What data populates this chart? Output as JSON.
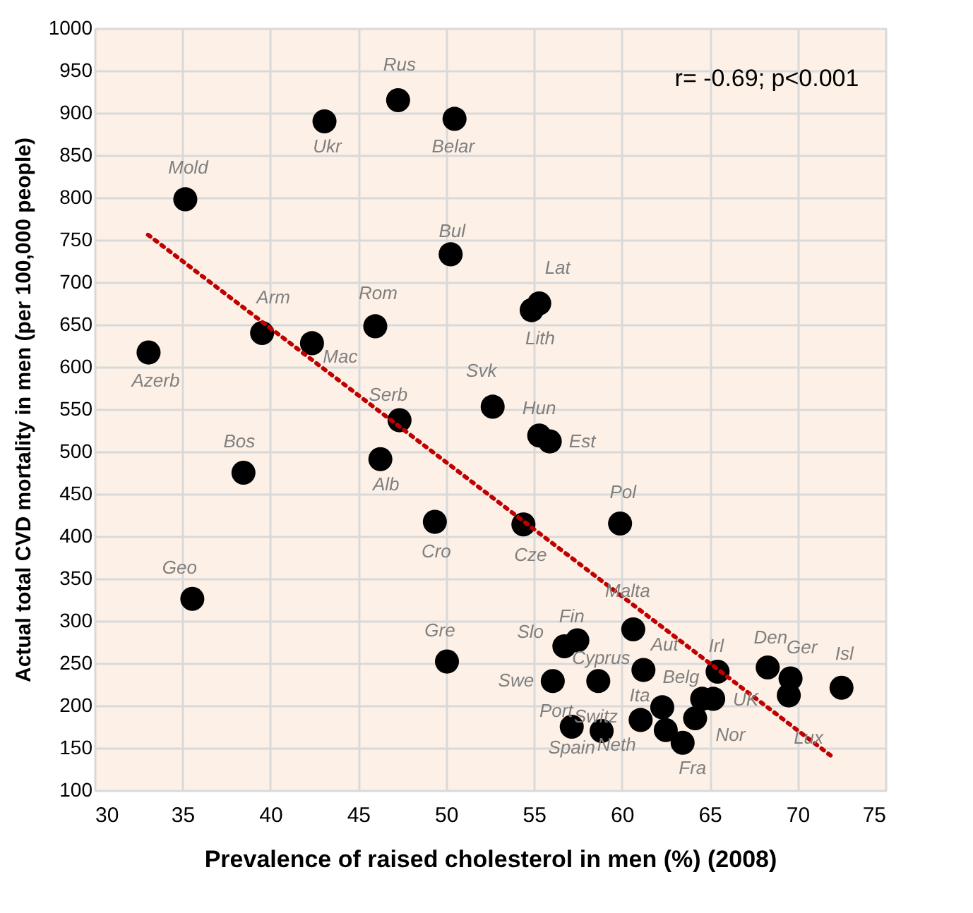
{
  "chart_data": {
    "type": "scatter",
    "xlabel": "Prevalence of raised cholesterol in men (%) (2008)",
    "ylabel": "Actual total CVD mortality in men (per 100,000 people)",
    "xlim": [
      30,
      75
    ],
    "xticks": [
      30,
      35,
      40,
      45,
      50,
      55,
      60,
      65,
      70,
      75
    ],
    "ylim": [
      100,
      1000
    ],
    "yticks": [
      100,
      150,
      200,
      250,
      300,
      350,
      400,
      450,
      500,
      550,
      600,
      650,
      700,
      750,
      800,
      850,
      900,
      950,
      1000
    ],
    "grid": true,
    "series": [
      {
        "color": "#000000",
        "marker": "circle",
        "x": [
          47.27,
          43.08,
          50.48,
          35.16,
          50.26,
          39.53,
          42.37,
          45.97,
          33.07,
          52.65,
          47.35,
          55.3,
          54.87,
          55.3,
          55.9,
          54.4,
          59.9,
          38.47,
          46.26,
          49.36,
          35.56,
          50.05,
          60.65,
          57.47,
          56.73,
          61.23,
          65.45,
          68.3,
          69.6,
          72.5,
          56.07,
          58.66,
          69.5,
          64.57,
          65.2,
          64.17,
          63.46,
          61.07,
          62.3,
          57.15,
          58.85,
          62.5
        ],
        "values": [
          915,
          890,
          893,
          798,
          733,
          640,
          628,
          648,
          617,
          553,
          537,
          675,
          667,
          519,
          512,
          414,
          415,
          475,
          491,
          417,
          326,
          252,
          290,
          277,
          270,
          242,
          240,
          245,
          232,
          221,
          229,
          229,
          212,
          208,
          208,
          185,
          156,
          183,
          198,
          175,
          170,
          171
        ]
      },
      {
        "type": "line",
        "color": "#c00000",
        "line_style": "dotted",
        "x": [
          33.04,
          72.07
        ],
        "values": [
          756,
          138
        ]
      }
    ],
    "annotations": [
      {
        "text": "Rus",
        "x": 47.27,
        "y": 915
      },
      {
        "text": "Ukr",
        "x": 43.08,
        "y": 890
      },
      {
        "text": "Belar",
        "x": 50.48,
        "y": 893
      },
      {
        "text": "Mold",
        "x": 35.16,
        "y": 798
      },
      {
        "text": "Bul",
        "x": 50.26,
        "y": 733
      },
      {
        "text": "Arm",
        "x": 39.53,
        "y": 640
      },
      {
        "text": "Mac",
        "x": 42.37,
        "y": 628
      },
      {
        "text": "Rom",
        "x": 45.97,
        "y": 648
      },
      {
        "text": "Azerb",
        "x": 33.07,
        "y": 617
      },
      {
        "text": "Svk",
        "x": 52.65,
        "y": 553
      },
      {
        "text": "Serb",
        "x": 47.35,
        "y": 537
      },
      {
        "text": "Lat",
        "x": 55.3,
        "y": 675
      },
      {
        "text": "Lith",
        "x": 54.87,
        "y": 667
      },
      {
        "text": "Hun",
        "x": 55.3,
        "y": 519
      },
      {
        "text": "Est",
        "x": 55.9,
        "y": 512
      },
      {
        "text": "Cze",
        "x": 54.4,
        "y": 414
      },
      {
        "text": "Pol",
        "x": 59.9,
        "y": 415
      },
      {
        "text": "Bos",
        "x": 38.47,
        "y": 475
      },
      {
        "text": "Alb",
        "x": 46.26,
        "y": 491
      },
      {
        "text": "Cro",
        "x": 49.36,
        "y": 417
      },
      {
        "text": "Geo",
        "x": 35.56,
        "y": 326
      },
      {
        "text": "Gre",
        "x": 50.05,
        "y": 252
      },
      {
        "text": "Malta",
        "x": 60.65,
        "y": 290
      },
      {
        "text": "Fin",
        "x": 57.47,
        "y": 277
      },
      {
        "text": "Slo",
        "x": 56.73,
        "y": 270
      },
      {
        "text": "Aut",
        "x": 61.23,
        "y": 242
      },
      {
        "text": "Irl",
        "x": 65.45,
        "y": 240
      },
      {
        "text": "Den",
        "x": 68.3,
        "y": 245
      },
      {
        "text": "Ger",
        "x": 69.6,
        "y": 232
      },
      {
        "text": "Isl",
        "x": 72.5,
        "y": 221
      },
      {
        "text": "Swe",
        "x": 56.07,
        "y": 229
      },
      {
        "text": "Cyprus",
        "x": 58.66,
        "y": 229
      },
      {
        "text": "Lux",
        "x": 69.5,
        "y": 212
      },
      {
        "text": "Belg",
        "x": 64.57,
        "y": 208
      },
      {
        "text": "UK",
        "x": 65.2,
        "y": 208
      },
      {
        "text": "Nor",
        "x": 64.17,
        "y": 185
      },
      {
        "text": "Fra",
        "x": 63.46,
        "y": 156
      },
      {
        "text": "Neth",
        "x": 61.07,
        "y": 183
      },
      {
        "text": "Ita",
        "x": 62.3,
        "y": 198
      },
      {
        "text": "Port",
        "x": 57.15,
        "y": 175
      },
      {
        "text": "Spain",
        "x": 57.15,
        "y": 175
      },
      {
        "text": "Switz",
        "x": 58.85,
        "y": 170
      },
      "r= -0.69; p<0.001"
    ]
  }
}
